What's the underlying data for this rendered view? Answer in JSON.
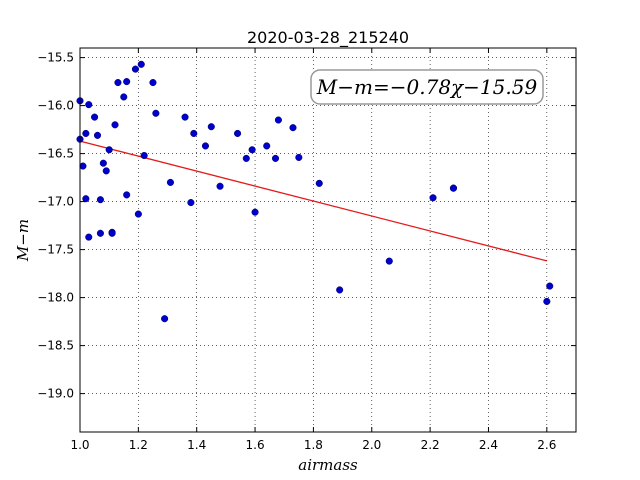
{
  "chart_data": {
    "type": "scatter",
    "title": "2020-03-28_215240",
    "xlabel": "airmass",
    "ylabel": "M−m",
    "xlim": [
      1.0,
      2.7
    ],
    "ylim": [
      -15.4,
      -19.4
    ],
    "y_inverted": true,
    "grid": true,
    "x_ticks": [
      "1.0",
      "1.2",
      "1.4",
      "1.6",
      "1.8",
      "2.0",
      "2.2",
      "2.4",
      "2.6"
    ],
    "y_ticks": [
      "−15.5",
      "−16.0",
      "−16.5",
      "−17.0",
      "−17.5",
      "−18.0",
      "−18.5",
      "−19.0"
    ],
    "x_tick_values": [
      1.0,
      1.2,
      1.4,
      1.6,
      1.8,
      2.0,
      2.2,
      2.4,
      2.6
    ],
    "y_tick_values": [
      -15.5,
      -16.0,
      -16.5,
      -17.0,
      -17.5,
      -18.0,
      -18.5,
      -19.0
    ],
    "annotation": "M−m=−0.78χ−15.59",
    "fit": {
      "slope": -0.78,
      "intercept": -15.59,
      "x_range": [
        1.0,
        2.6
      ],
      "color": "#e41a1c"
    },
    "marker_color": "#0000cc",
    "points": [
      {
        "x": 1.0,
        "y": -15.95
      },
      {
        "x": 1.0,
        "y": -16.35
      },
      {
        "x": 1.01,
        "y": -16.63
      },
      {
        "x": 1.02,
        "y": -16.97
      },
      {
        "x": 1.02,
        "y": -16.29
      },
      {
        "x": 1.03,
        "y": -15.99
      },
      {
        "x": 1.03,
        "y": -17.37
      },
      {
        "x": 1.05,
        "y": -16.12
      },
      {
        "x": 1.06,
        "y": -16.31
      },
      {
        "x": 1.07,
        "y": -16.98
      },
      {
        "x": 1.07,
        "y": -17.33
      },
      {
        "x": 1.08,
        "y": -16.6
      },
      {
        "x": 1.09,
        "y": -16.68
      },
      {
        "x": 1.1,
        "y": -16.46
      },
      {
        "x": 1.11,
        "y": -17.32
      },
      {
        "x": 1.11,
        "y": -17.33
      },
      {
        "x": 1.12,
        "y": -16.2
      },
      {
        "x": 1.13,
        "y": -15.76
      },
      {
        "x": 1.15,
        "y": -15.91
      },
      {
        "x": 1.16,
        "y": -15.75
      },
      {
        "x": 1.16,
        "y": -16.93
      },
      {
        "x": 1.19,
        "y": -15.62
      },
      {
        "x": 1.2,
        "y": -17.13
      },
      {
        "x": 1.21,
        "y": -15.57
      },
      {
        "x": 1.22,
        "y": -16.52
      },
      {
        "x": 1.25,
        "y": -15.76
      },
      {
        "x": 1.26,
        "y": -16.08
      },
      {
        "x": 1.29,
        "y": -18.22
      },
      {
        "x": 1.31,
        "y": -16.8
      },
      {
        "x": 1.36,
        "y": -16.12
      },
      {
        "x": 1.38,
        "y": -17.01
      },
      {
        "x": 1.39,
        "y": -16.29
      },
      {
        "x": 1.43,
        "y": -16.42
      },
      {
        "x": 1.45,
        "y": -16.22
      },
      {
        "x": 1.48,
        "y": -16.84
      },
      {
        "x": 1.54,
        "y": -16.29
      },
      {
        "x": 1.57,
        "y": -16.55
      },
      {
        "x": 1.59,
        "y": -16.46
      },
      {
        "x": 1.6,
        "y": -17.11
      },
      {
        "x": 1.64,
        "y": -16.42
      },
      {
        "x": 1.67,
        "y": -16.55
      },
      {
        "x": 1.68,
        "y": -16.15
      },
      {
        "x": 1.73,
        "y": -16.23
      },
      {
        "x": 1.75,
        "y": -16.54
      },
      {
        "x": 1.82,
        "y": -16.81
      },
      {
        "x": 1.89,
        "y": -17.92
      },
      {
        "x": 2.06,
        "y": -17.62
      },
      {
        "x": 2.21,
        "y": -16.96
      },
      {
        "x": 2.28,
        "y": -16.86
      },
      {
        "x": 2.28,
        "y": -16.86
      },
      {
        "x": 2.6,
        "y": -18.04
      },
      {
        "x": 2.61,
        "y": -17.88
      }
    ]
  }
}
